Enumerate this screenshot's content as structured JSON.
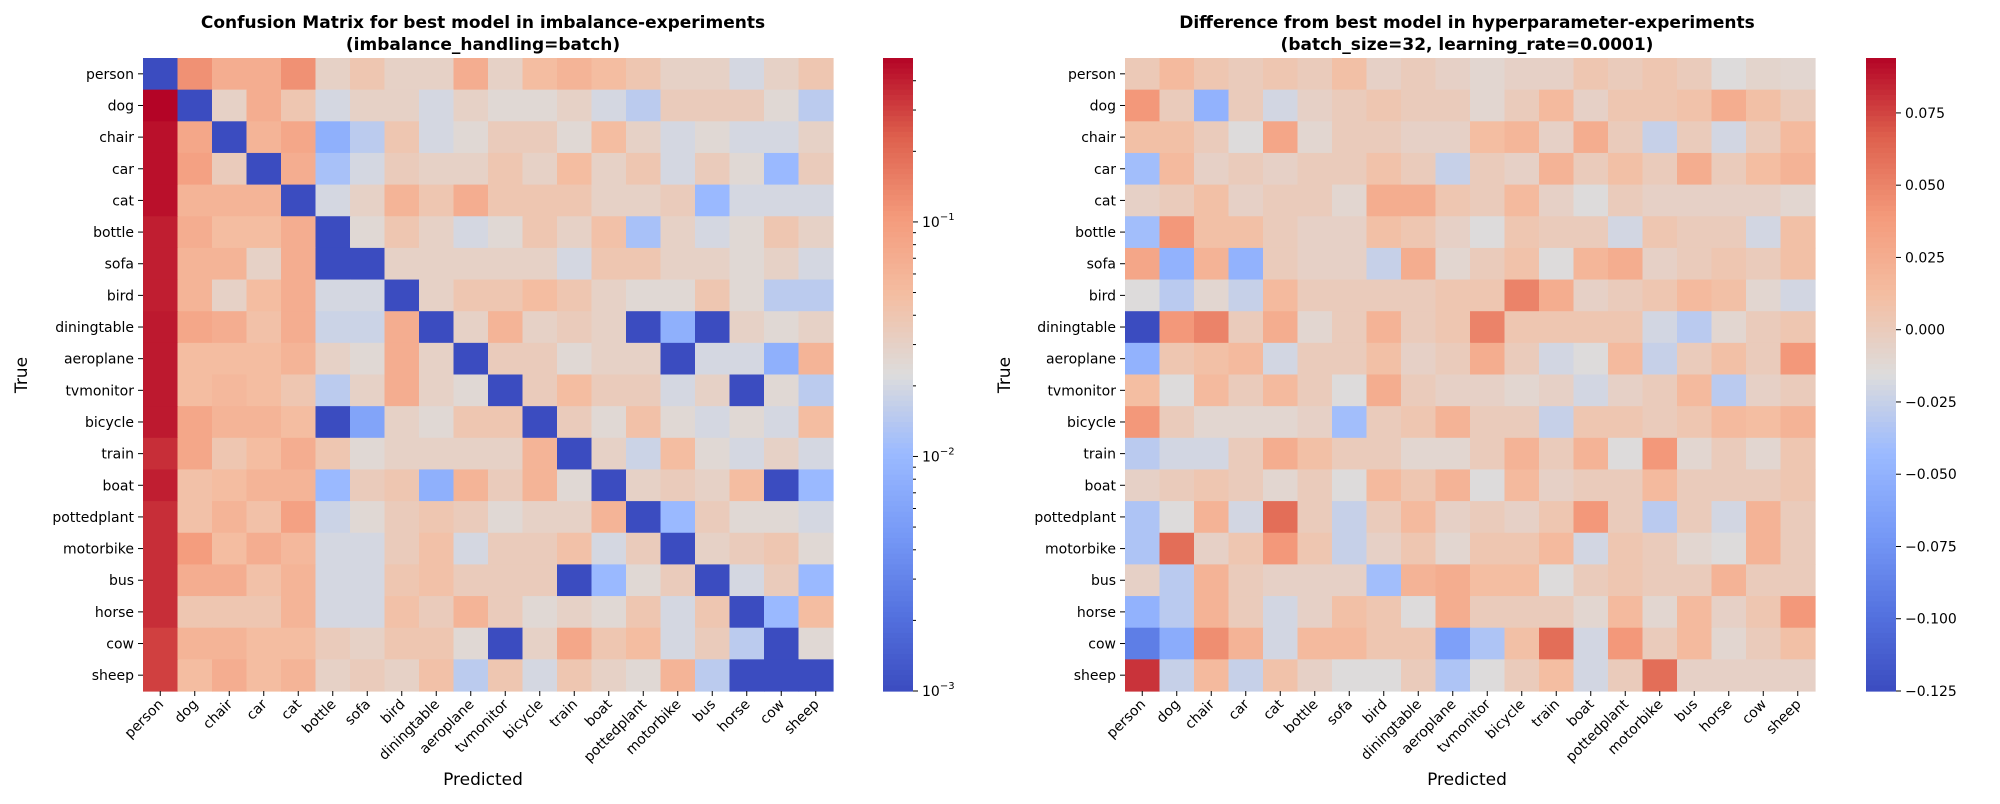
{
  "chart_data": [
    {
      "type": "heatmap",
      "title": "Confusion Matrix for best model in imbalance-experiments",
      "subtitle": "(imbalance_handling=batch)",
      "xlabel": "Predicted",
      "ylabel": "True",
      "labels": [
        "person",
        "dog",
        "chair",
        "car",
        "cat",
        "bottle",
        "sofa",
        "bird",
        "diningtable",
        "aeroplane",
        "tvmonitor",
        "bicycle",
        "train",
        "boat",
        "pottedplant",
        "motorbike",
        "bus",
        "horse",
        "cow",
        "sheep"
      ],
      "colorscale": "coolwarm",
      "color_scale_type": "log",
      "vmin": 0.001,
      "vmax": 0.5,
      "colorbar_ticks": [
        {
          "value": 0.1,
          "label": "10−1"
        },
        {
          "value": 0.01,
          "label": "10−2"
        },
        {
          "value": 0.001,
          "label": "10−3"
        }
      ],
      "values": [
        [
          0.001,
          0.12,
          0.07,
          0.07,
          0.12,
          0.03,
          0.04,
          0.03,
          0.03,
          0.07,
          0.03,
          0.05,
          0.06,
          0.05,
          0.04,
          0.03,
          0.03,
          0.02,
          0.03,
          0.04
        ],
        [
          0.5,
          0.001,
          0.03,
          0.07,
          0.04,
          0.02,
          0.03,
          0.03,
          0.02,
          0.03,
          0.025,
          0.025,
          0.03,
          0.02,
          0.015,
          0.035,
          0.035,
          0.035,
          0.025,
          0.015
        ],
        [
          0.45,
          0.08,
          0.001,
          0.06,
          0.08,
          0.008,
          0.015,
          0.04,
          0.02,
          0.025,
          0.035,
          0.035,
          0.025,
          0.05,
          0.03,
          0.02,
          0.025,
          0.02,
          0.02,
          0.03
        ],
        [
          0.45,
          0.09,
          0.035,
          0.001,
          0.07,
          0.012,
          0.02,
          0.035,
          0.03,
          0.03,
          0.04,
          0.03,
          0.05,
          0.03,
          0.04,
          0.02,
          0.035,
          0.025,
          0.01,
          0.035
        ],
        [
          0.45,
          0.06,
          0.06,
          0.06,
          0.001,
          0.02,
          0.03,
          0.06,
          0.04,
          0.07,
          0.04,
          0.04,
          0.04,
          0.03,
          0.03,
          0.035,
          0.01,
          0.02,
          0.02,
          0.02
        ],
        [
          0.4,
          0.07,
          0.05,
          0.05,
          0.07,
          0.001,
          0.025,
          0.04,
          0.03,
          0.02,
          0.025,
          0.04,
          0.03,
          0.045,
          0.012,
          0.03,
          0.02,
          0.025,
          0.04,
          0.03
        ],
        [
          0.4,
          0.06,
          0.06,
          0.03,
          0.07,
          0.001,
          0.001,
          0.03,
          0.03,
          0.03,
          0.03,
          0.03,
          0.02,
          0.04,
          0.04,
          0.03,
          0.03,
          0.025,
          0.03,
          0.02
        ],
        [
          0.4,
          0.06,
          0.03,
          0.05,
          0.07,
          0.02,
          0.02,
          0.001,
          0.03,
          0.04,
          0.04,
          0.05,
          0.04,
          0.03,
          0.025,
          0.025,
          0.04,
          0.025,
          0.015,
          0.015
        ],
        [
          0.42,
          0.08,
          0.07,
          0.045,
          0.07,
          0.018,
          0.018,
          0.07,
          0.001,
          0.03,
          0.06,
          0.03,
          0.035,
          0.03,
          0.001,
          0.008,
          0.001,
          0.03,
          0.025,
          0.03
        ],
        [
          0.42,
          0.05,
          0.05,
          0.05,
          0.06,
          0.03,
          0.025,
          0.07,
          0.03,
          0.001,
          0.035,
          0.035,
          0.025,
          0.03,
          0.03,
          0.001,
          0.02,
          0.02,
          0.008,
          0.06
        ],
        [
          0.42,
          0.05,
          0.055,
          0.05,
          0.04,
          0.015,
          0.03,
          0.07,
          0.03,
          0.025,
          0.001,
          0.035,
          0.05,
          0.035,
          0.035,
          0.02,
          0.03,
          0.001,
          0.025,
          0.015
        ],
        [
          0.42,
          0.08,
          0.06,
          0.06,
          0.05,
          0.001,
          0.006,
          0.03,
          0.025,
          0.04,
          0.04,
          0.001,
          0.035,
          0.025,
          0.045,
          0.025,
          0.02,
          0.025,
          0.02,
          0.05
        ],
        [
          0.35,
          0.08,
          0.04,
          0.05,
          0.07,
          0.04,
          0.025,
          0.03,
          0.03,
          0.03,
          0.03,
          0.06,
          0.001,
          0.03,
          0.018,
          0.05,
          0.025,
          0.02,
          0.03,
          0.02
        ],
        [
          0.4,
          0.045,
          0.05,
          0.06,
          0.06,
          0.01,
          0.035,
          0.04,
          0.008,
          0.06,
          0.035,
          0.06,
          0.025,
          0.001,
          0.03,
          0.035,
          0.03,
          0.05,
          0.001,
          0.01
        ],
        [
          0.35,
          0.045,
          0.06,
          0.045,
          0.09,
          0.018,
          0.025,
          0.035,
          0.04,
          0.035,
          0.025,
          0.03,
          0.03,
          0.06,
          0.001,
          0.01,
          0.035,
          0.025,
          0.025,
          0.02
        ],
        [
          0.35,
          0.1,
          0.05,
          0.07,
          0.055,
          0.02,
          0.02,
          0.035,
          0.045,
          0.02,
          0.035,
          0.035,
          0.045,
          0.02,
          0.035,
          0.001,
          0.03,
          0.035,
          0.04,
          0.025
        ],
        [
          0.35,
          0.07,
          0.07,
          0.045,
          0.06,
          0.02,
          0.02,
          0.04,
          0.045,
          0.035,
          0.035,
          0.035,
          0.001,
          0.01,
          0.025,
          0.035,
          0.001,
          0.02,
          0.035,
          0.01
        ],
        [
          0.35,
          0.04,
          0.04,
          0.04,
          0.06,
          0.02,
          0.02,
          0.045,
          0.035,
          0.06,
          0.035,
          0.025,
          0.03,
          0.025,
          0.04,
          0.02,
          0.04,
          0.001,
          0.01,
          0.05
        ],
        [
          0.3,
          0.06,
          0.06,
          0.05,
          0.05,
          0.035,
          0.03,
          0.04,
          0.04,
          0.025,
          0.001,
          0.03,
          0.08,
          0.04,
          0.05,
          0.02,
          0.035,
          0.015,
          0.001,
          0.025
        ],
        [
          0.3,
          0.05,
          0.07,
          0.05,
          0.06,
          0.03,
          0.035,
          0.03,
          0.045,
          0.015,
          0.04,
          0.02,
          0.04,
          0.03,
          0.025,
          0.06,
          0.015,
          0.001,
          0.001,
          0.001
        ]
      ]
    },
    {
      "type": "heatmap",
      "title": "Difference from best model in hyperparameter-experiments",
      "subtitle": "(batch_size=32, learning_rate=0.0001)",
      "xlabel": "Predicted",
      "ylabel": "True",
      "labels": [
        "person",
        "dog",
        "chair",
        "car",
        "cat",
        "bottle",
        "sofa",
        "bird",
        "diningtable",
        "aeroplane",
        "tvmonitor",
        "bicycle",
        "train",
        "boat",
        "pottedplant",
        "motorbike",
        "bus",
        "horse",
        "cow",
        "sheep"
      ],
      "colorscale": "coolwarm",
      "color_scale_type": "linear",
      "vmin": -0.125,
      "vmax": 0.094,
      "colorbar_ticks": [
        {
          "value": 0.075,
          "label": "0.075"
        },
        {
          "value": 0.05,
          "label": "0.050"
        },
        {
          "value": 0.025,
          "label": "0.025"
        },
        {
          "value": 0,
          "label": "0.000"
        },
        {
          "value": -0.025,
          "label": "−0.025"
        },
        {
          "value": -0.05,
          "label": "−0.050"
        },
        {
          "value": -0.075,
          "label": "−0.075"
        },
        {
          "value": -0.1,
          "label": "−0.100"
        },
        {
          "value": -0.125,
          "label": "−0.125"
        }
      ],
      "values": [
        [
          0.002,
          0.015,
          0.005,
          0.0,
          0.005,
          0.0,
          0.01,
          -0.005,
          0.0,
          -0.005,
          -0.01,
          -0.005,
          -0.005,
          0.005,
          0.0,
          0.005,
          0.0,
          -0.015,
          -0.008,
          -0.01
        ],
        [
          0.04,
          0.0,
          -0.05,
          0.0,
          -0.02,
          -0.005,
          0.0,
          0.005,
          0.0,
          0.0,
          -0.01,
          0.0,
          0.015,
          -0.005,
          0.005,
          0.005,
          0.008,
          0.025,
          0.01,
          0.0
        ],
        [
          0.01,
          0.01,
          0.0,
          -0.015,
          0.03,
          -0.01,
          0.0,
          0.0,
          -0.005,
          -0.005,
          0.012,
          0.018,
          -0.005,
          0.025,
          0.0,
          -0.025,
          0.0,
          -0.02,
          0.0,
          0.015
        ],
        [
          -0.04,
          0.015,
          -0.005,
          0.0,
          -0.005,
          0.0,
          0.0,
          0.008,
          0.0,
          -0.025,
          0.0,
          -0.005,
          0.02,
          0.0,
          0.01,
          0.0,
          0.025,
          0.0,
          0.012,
          0.02
        ],
        [
          -0.005,
          0.0,
          0.01,
          -0.005,
          0.0,
          0.0,
          -0.01,
          0.025,
          0.025,
          0.005,
          0.0,
          0.015,
          -0.005,
          -0.015,
          0.0,
          -0.005,
          -0.005,
          -0.005,
          -0.005,
          -0.01
        ],
        [
          -0.04,
          0.04,
          0.01,
          0.01,
          0.0,
          -0.005,
          -0.005,
          0.01,
          0.005,
          -0.005,
          -0.015,
          0.005,
          0.0,
          0.0,
          -0.02,
          0.005,
          0.0,
          0.0,
          -0.02,
          0.01
        ],
        [
          0.03,
          -0.05,
          0.02,
          -0.05,
          0.0,
          -0.005,
          -0.005,
          -0.025,
          0.025,
          -0.01,
          0.0,
          0.008,
          -0.015,
          0.018,
          0.025,
          -0.005,
          0.0,
          0.005,
          0.0,
          0.01
        ],
        [
          -0.015,
          -0.03,
          -0.01,
          -0.025,
          0.015,
          0.0,
          0.0,
          0.0,
          0.0,
          0.005,
          0.005,
          0.05,
          0.025,
          -0.005,
          0.0,
          0.005,
          0.015,
          0.01,
          -0.01,
          -0.02
        ],
        [
          -0.125,
          0.04,
          0.05,
          0.0,
          0.025,
          -0.01,
          0.0,
          0.02,
          0.0,
          0.005,
          0.05,
          0.005,
          0.005,
          0.005,
          0.005,
          -0.02,
          -0.03,
          -0.01,
          0.0,
          0.005
        ],
        [
          -0.05,
          0.005,
          0.01,
          0.015,
          -0.02,
          0.0,
          0.0,
          0.01,
          -0.005,
          0.0,
          0.025,
          0.0,
          -0.02,
          -0.015,
          0.015,
          -0.025,
          0.0,
          0.01,
          0.0,
          0.04
        ],
        [
          0.012,
          -0.015,
          0.015,
          0.0,
          0.015,
          0.0,
          -0.015,
          0.025,
          0.0,
          -0.005,
          -0.005,
          -0.01,
          -0.005,
          -0.02,
          -0.005,
          0.0,
          0.015,
          -0.03,
          -0.005,
          0.0
        ],
        [
          0.04,
          0.0,
          -0.01,
          -0.01,
          -0.01,
          -0.005,
          -0.04,
          0.0,
          0.005,
          0.02,
          0.0,
          0.0,
          -0.025,
          0.005,
          0.005,
          0.0,
          0.005,
          0.015,
          0.012,
          0.02
        ],
        [
          -0.03,
          -0.02,
          -0.02,
          0.0,
          0.025,
          0.01,
          0.0,
          0.0,
          -0.01,
          -0.01,
          0.0,
          0.02,
          0.0,
          0.02,
          -0.015,
          0.04,
          -0.01,
          0.0,
          -0.01,
          0.005
        ],
        [
          -0.005,
          0.0,
          0.005,
          0.0,
          -0.01,
          0.0,
          -0.015,
          0.015,
          0.005,
          0.02,
          -0.015,
          0.015,
          -0.005,
          0.0,
          0.0,
          0.015,
          0.0,
          0.0,
          0.0,
          0.005
        ],
        [
          -0.035,
          -0.015,
          0.02,
          -0.02,
          0.06,
          0.0,
          -0.025,
          0.0,
          0.015,
          -0.005,
          0.0,
          -0.005,
          0.005,
          0.04,
          0.0,
          -0.03,
          0.0,
          -0.02,
          0.02,
          0.0
        ],
        [
          -0.035,
          0.06,
          -0.005,
          0.005,
          0.04,
          0.005,
          -0.025,
          -0.005,
          0.005,
          -0.01,
          0.005,
          0.005,
          0.015,
          -0.02,
          0.005,
          0.0,
          -0.01,
          -0.015,
          0.02,
          0.0
        ],
        [
          -0.005,
          -0.03,
          0.02,
          0.0,
          -0.005,
          -0.005,
          -0.005,
          -0.04,
          0.02,
          0.025,
          0.012,
          0.012,
          -0.015,
          0.0,
          0.005,
          0.0,
          0.0,
          0.02,
          0.0,
          0.0
        ],
        [
          -0.05,
          -0.03,
          0.02,
          0.0,
          -0.02,
          -0.005,
          0.01,
          0.005,
          -0.015,
          0.025,
          0.0,
          0.0,
          0.0,
          -0.01,
          0.015,
          -0.01,
          0.015,
          -0.005,
          0.005,
          0.04
        ],
        [
          -0.09,
          -0.055,
          0.045,
          0.02,
          -0.02,
          0.015,
          0.015,
          0.005,
          0.005,
          -0.065,
          -0.035,
          0.01,
          0.06,
          -0.02,
          0.04,
          0.0,
          0.015,
          -0.01,
          0.0,
          0.01
        ],
        [
          0.08,
          -0.025,
          0.015,
          -0.025,
          0.008,
          -0.005,
          -0.015,
          -0.015,
          0.0,
          -0.035,
          -0.015,
          0.0,
          0.012,
          -0.02,
          0.0,
          0.06,
          -0.005,
          -0.005,
          -0.005,
          -0.005
        ]
      ]
    }
  ]
}
